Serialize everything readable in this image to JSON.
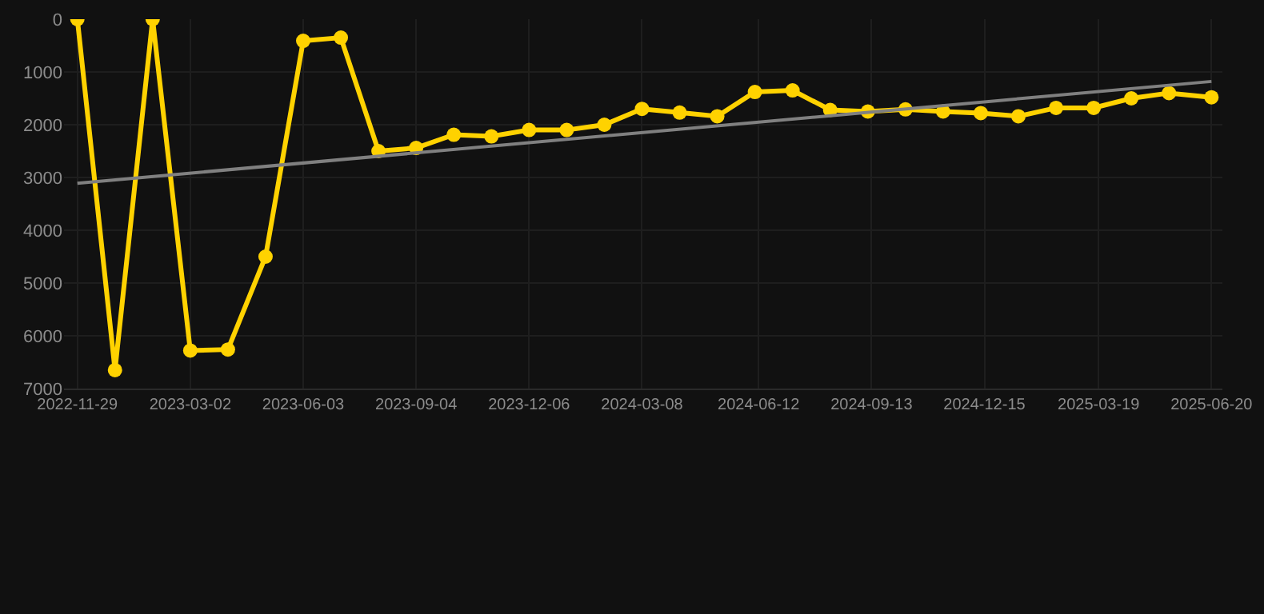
{
  "chart_data": {
    "type": "line",
    "x": [
      "2022-11-29",
      "2022-12-30",
      "2023-01-30",
      "2023-03-02",
      "2023-04-02",
      "2023-05-03",
      "2023-06-03",
      "2023-07-04",
      "2023-08-04",
      "2023-09-04",
      "2023-10-05",
      "2023-11-05",
      "2023-12-06",
      "2024-01-06",
      "2024-02-06",
      "2024-03-08",
      "2024-04-08",
      "2024-05-09",
      "2024-06-09",
      "2024-07-10",
      "2024-08-10",
      "2024-09-10",
      "2024-10-11",
      "2024-11-11",
      "2024-12-12",
      "2025-01-12",
      "2025-02-12",
      "2025-03-15",
      "2025-04-15",
      "2025-05-16",
      "2025-06-20"
    ],
    "series": [
      {
        "color": "#ffd200",
        "marker": "circle",
        "values": [
          0,
          6650,
          0,
          6280,
          6260,
          4500,
          410,
          350,
          2500,
          2440,
          2190,
          2220,
          2100,
          2100,
          2000,
          1700,
          1770,
          1840,
          1380,
          1350,
          1720,
          1750,
          1710,
          1750,
          1780,
          1840,
          1680,
          1680,
          1500,
          1400,
          1480
        ]
      },
      {
        "color": "#808080",
        "marker": "none",
        "x": [
          "2022-11-29",
          "2025-06-20"
        ],
        "values": [
          3110,
          1180
        ]
      }
    ],
    "xlim": [
      "2022-11-18",
      "2025-06-29"
    ],
    "xticks": [
      "2022-11-29",
      "2023-03-02",
      "2023-06-03",
      "2023-09-04",
      "2023-12-06",
      "2024-03-08",
      "2024-06-12",
      "2024-09-13",
      "2024-12-15",
      "2025-03-19",
      "2025-06-20"
    ],
    "ylim": [
      7000,
      0
    ],
    "yticks": [
      0,
      1000,
      2000,
      3000,
      4000,
      5000,
      6000,
      7000
    ],
    "grid": true
  }
}
